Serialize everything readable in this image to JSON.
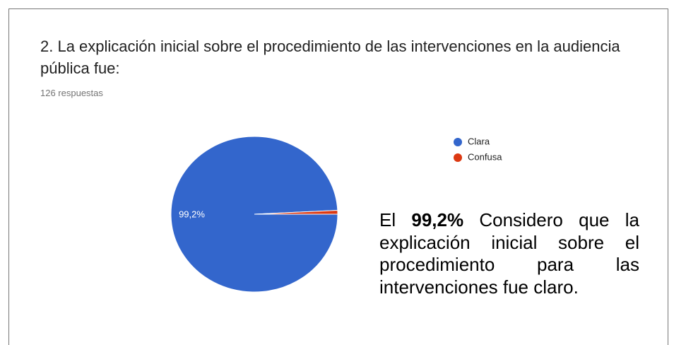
{
  "chart_data": {
    "type": "pie",
    "title": "2. La explicación inicial sobre el procedimiento de las intervenciones en la audiencia pública fue:",
    "subtitle": "126 respuestas",
    "categories": [
      "Clara",
      "Confusa"
    ],
    "values": [
      99.2,
      0.8
    ],
    "value_labels": [
      "99,2%",
      null
    ],
    "colors": [
      "#3366cc",
      "#dc3912"
    ],
    "legend": "right",
    "annotation": [
      "El",
      "99,2%",
      "Considero que la explicación inicial sobre el procedimiento para las intervenciones fue claro."
    ]
  }
}
